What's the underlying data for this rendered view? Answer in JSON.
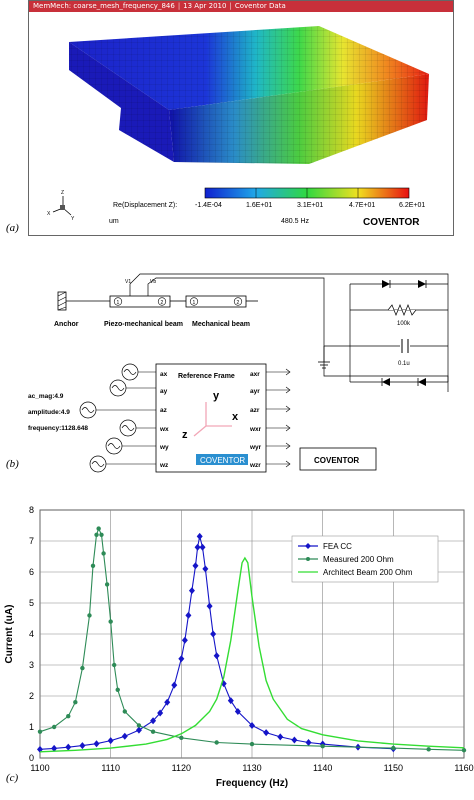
{
  "panel_a": {
    "letter": "(a)",
    "titlebar": {
      "app": "MemMech: coarse_mesh_frequency_846",
      "date": "13 Apr 2010",
      "vendor": "Coventor Data"
    },
    "colorbar_label": "Re(Displacement Z):",
    "colorbar_ticks": [
      "-1.4E-04",
      "1.6E+01",
      "3.1E+01",
      "4.7E+01",
      "6.2E+01"
    ],
    "units": "um",
    "frequency": "480.5 Hz",
    "logo": "COVENTOR",
    "triad_labels": [
      "Z",
      "X",
      "Y"
    ]
  },
  "panel_b": {
    "letter": "(b)",
    "anchor_label": "Anchor",
    "piezo_label": "Piezo-mechanical beam",
    "mech_label": "Mechanical beam",
    "port_labels": [
      "V1",
      "Vb"
    ],
    "node_labels": [
      "1",
      "2",
      "1",
      "2"
    ],
    "resistor_label": "100k",
    "capacitor_label": "0.1u",
    "params": [
      "ac_mag:4.9",
      "amplitude:4.9",
      "frequency:1128.648"
    ],
    "ref_frame": {
      "title": "Reference Frame",
      "inputs": [
        "ax",
        "ay",
        "az",
        "wx",
        "wy",
        "wz"
      ],
      "outputs": [
        "axr",
        "ayr",
        "azr",
        "wxr",
        "wyr",
        "wzr"
      ],
      "axes": [
        "y",
        "x",
        "z"
      ],
      "badge": "COVENTOR"
    },
    "logo_box": "COVENTOR"
  },
  "panel_c": {
    "letter": "(c)",
    "chart_data": {
      "type": "line",
      "xlabel": "Frequency (Hz)",
      "ylabel": "Current (uA)",
      "xlim": [
        1100,
        1160
      ],
      "ylim": [
        0,
        8
      ],
      "xticks": [
        1100,
        1110,
        1120,
        1130,
        1140,
        1150,
        1160
      ],
      "yticks": [
        0,
        1,
        2,
        3,
        4,
        5,
        6,
        7,
        8
      ],
      "grid": true,
      "legend_position": "top-right",
      "series": [
        {
          "name": "FEA CC",
          "color": "#1515c8",
          "marker": "diamond",
          "points": [
            [
              1100,
              0.28
            ],
            [
              1102,
              0.31
            ],
            [
              1104,
              0.35
            ],
            [
              1106,
              0.4
            ],
            [
              1108,
              0.46
            ],
            [
              1110,
              0.56
            ],
            [
              1112,
              0.7
            ],
            [
              1114,
              0.9
            ],
            [
              1116,
              1.2
            ],
            [
              1117,
              1.45
            ],
            [
              1118,
              1.8
            ],
            [
              1119,
              2.35
            ],
            [
              1120,
              3.2
            ],
            [
              1120.5,
              3.8
            ],
            [
              1121,
              4.6
            ],
            [
              1121.5,
              5.4
            ],
            [
              1122,
              6.2
            ],
            [
              1122.3,
              6.8
            ],
            [
              1122.6,
              7.15
            ],
            [
              1123,
              6.8
            ],
            [
              1123.4,
              6.1
            ],
            [
              1124,
              4.9
            ],
            [
              1124.5,
              4.0
            ],
            [
              1125,
              3.3
            ],
            [
              1126,
              2.4
            ],
            [
              1127,
              1.85
            ],
            [
              1128,
              1.5
            ],
            [
              1130,
              1.05
            ],
            [
              1132,
              0.82
            ],
            [
              1134,
              0.68
            ],
            [
              1136,
              0.58
            ],
            [
              1138,
              0.5
            ],
            [
              1140,
              0.45
            ],
            [
              1145,
              0.35
            ],
            [
              1150,
              0.3
            ]
          ]
        },
        {
          "name": "Measured 200 Ohm",
          "color": "#2e8b57",
          "marker": "circle",
          "points": [
            [
              1100,
              0.85
            ],
            [
              1102,
              1.0
            ],
            [
              1104,
              1.35
            ],
            [
              1105,
              1.8
            ],
            [
              1106,
              2.9
            ],
            [
              1107,
              4.6
            ],
            [
              1107.5,
              6.2
            ],
            [
              1108,
              7.2
            ],
            [
              1108.3,
              7.4
            ],
            [
              1108.7,
              7.2
            ],
            [
              1109,
              6.6
            ],
            [
              1109.5,
              5.6
            ],
            [
              1110,
              4.4
            ],
            [
              1110.5,
              3.0
            ],
            [
              1111,
              2.2
            ],
            [
              1112,
              1.5
            ],
            [
              1114,
              1.05
            ],
            [
              1116,
              0.85
            ],
            [
              1120,
              0.65
            ],
            [
              1125,
              0.5
            ],
            [
              1130,
              0.45
            ],
            [
              1140,
              0.38
            ],
            [
              1150,
              0.32
            ],
            [
              1155,
              0.28
            ],
            [
              1160,
              0.25
            ]
          ]
        },
        {
          "name": "Architect Beam 200 Ohm",
          "color": "#33dd33",
          "marker": "none",
          "points": [
            [
              1100,
              0.2
            ],
            [
              1105,
              0.25
            ],
            [
              1110,
              0.32
            ],
            [
              1115,
              0.45
            ],
            [
              1118,
              0.6
            ],
            [
              1120,
              0.78
            ],
            [
              1122,
              1.05
            ],
            [
              1124,
              1.5
            ],
            [
              1125,
              1.9
            ],
            [
              1126,
              2.6
            ],
            [
              1127,
              3.8
            ],
            [
              1128,
              5.4
            ],
            [
              1128.6,
              6.3
            ],
            [
              1129,
              6.45
            ],
            [
              1129.4,
              6.3
            ],
            [
              1130,
              5.2
            ],
            [
              1131,
              3.6
            ],
            [
              1132,
              2.5
            ],
            [
              1133,
              1.9
            ],
            [
              1135,
              1.25
            ],
            [
              1137,
              0.95
            ],
            [
              1140,
              0.75
            ],
            [
              1145,
              0.55
            ],
            [
              1150,
              0.45
            ],
            [
              1155,
              0.38
            ],
            [
              1160,
              0.33
            ]
          ]
        }
      ]
    }
  }
}
